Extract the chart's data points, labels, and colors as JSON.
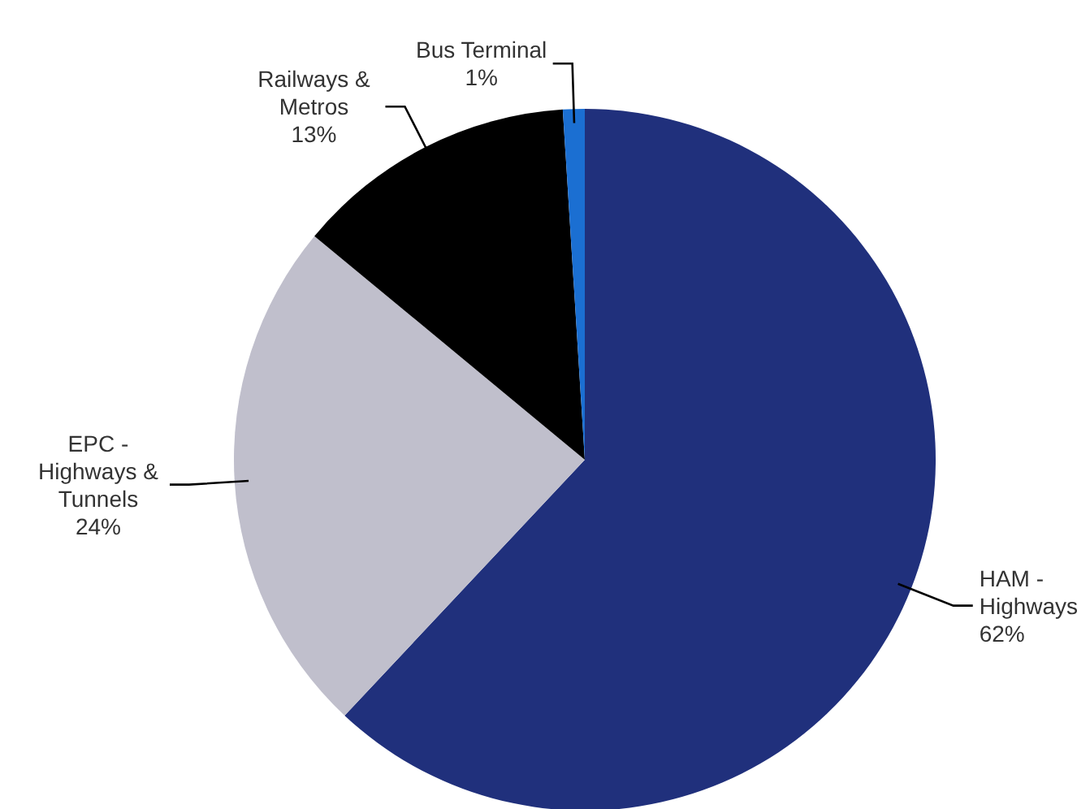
{
  "chart_data": {
    "type": "pie",
    "categories": [
      "HAM - Highways",
      "EPC - Highways & Tunnels",
      "Railways & Metros",
      "Bus Terminal"
    ],
    "values": [
      62,
      24,
      13,
      1
    ],
    "value_labels": [
      "62%",
      "24%",
      "13%",
      "1%"
    ],
    "colors": [
      "#20307c",
      "#c0bfcc",
      "#000000",
      "#1b6fd2"
    ],
    "legend": false
  }
}
